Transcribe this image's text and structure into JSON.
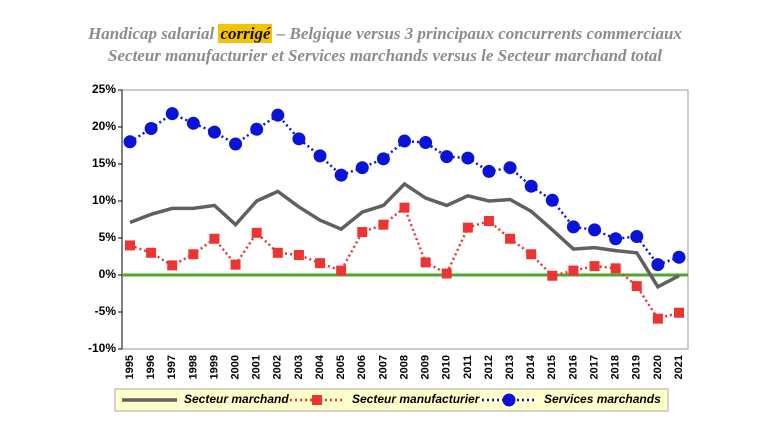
{
  "chart_data": {
    "type": "line",
    "title_start": "Handicap salarial",
    "title_highlight": "corrigé",
    "title_end": "– Belgique versus 3 principaux concurrents commerciaux",
    "subtitle": "Secteur manufacturier et Services marchands versus le Secteur marchand total",
    "categories": [
      "1995",
      "1996",
      "1997",
      "1998",
      "1999",
      "2000",
      "2001",
      "2002",
      "2003",
      "2004",
      "2005",
      "2006",
      "2007",
      "2008",
      "2009",
      "2010",
      "2011",
      "2012",
      "2013",
      "2014",
      "2015",
      "2016",
      "2017",
      "2018",
      "2019",
      "2020",
      "2021"
    ],
    "series": [
      {
        "name": "Secteur marchand",
        "color": "#606060",
        "marker": "none",
        "dotted": false,
        "values": [
          7.1,
          8.2,
          9.0,
          9.0,
          9.4,
          6.8,
          10.0,
          11.3,
          9.2,
          7.4,
          6.2,
          8.5,
          9.4,
          12.3,
          10.4,
          9.4,
          10.7,
          10.0,
          10.2,
          8.6,
          6.1,
          3.5,
          3.7,
          3.3,
          3.0,
          -1.6,
          -0.1
        ]
      },
      {
        "name": "Secteur manufacturier",
        "color": "#ee3333",
        "marker": "square",
        "dotted": true,
        "values": [
          4.0,
          3.0,
          1.3,
          2.8,
          4.9,
          1.4,
          5.7,
          3.0,
          2.7,
          1.6,
          0.6,
          5.8,
          6.8,
          9.1,
          1.7,
          0.2,
          6.4,
          7.3,
          4.9,
          2.8,
          -0.1,
          0.6,
          1.2,
          0.9,
          -1.5,
          -5.9,
          -5.1
        ]
      },
      {
        "name": "Services marchands",
        "color": "#0a14d8",
        "marker": "circle",
        "dotted": true,
        "values": [
          18.0,
          19.8,
          21.8,
          20.5,
          19.3,
          17.7,
          19.7,
          21.6,
          18.4,
          16.1,
          13.5,
          14.5,
          15.7,
          18.1,
          17.9,
          16.0,
          15.8,
          14.0,
          14.5,
          12.0,
          10.1,
          6.5,
          6.1,
          4.9,
          5.2,
          1.4,
          2.4
        ]
      }
    ],
    "ylim": [
      -10,
      25
    ],
    "yticks": [
      {
        "value": -10,
        "label": "-10%"
      },
      {
        "value": -5,
        "label": "-5%"
      },
      {
        "value": 0,
        "label": "0%"
      },
      {
        "value": 5,
        "label": "5%"
      },
      {
        "value": 10,
        "label": "10%"
      },
      {
        "value": 15,
        "label": "15%"
      },
      {
        "value": 20,
        "label": "20%"
      },
      {
        "value": 25,
        "label": "25%"
      }
    ],
    "zero_line_color": "#4ea72e",
    "legend_background": "#ffffcc"
  }
}
